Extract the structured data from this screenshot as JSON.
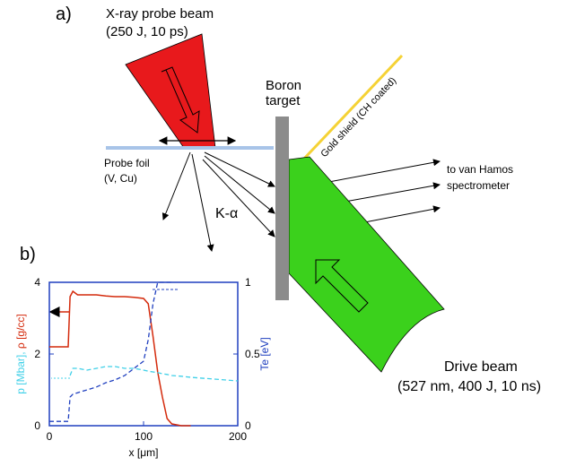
{
  "figure": {
    "panel_a": {
      "label": "a)",
      "probe_beam": [
        "X-ray probe beam",
        "(250 J, 10 ps)"
      ],
      "target": [
        "Boron",
        "target"
      ],
      "shield": "Gold shield (CH coated)",
      "foil": [
        "Probe foil",
        "(V, Cu)"
      ],
      "spectrometer": [
        "to van Hamos",
        "spectrometer"
      ],
      "k_alpha": "K-α",
      "drive_beam": [
        "Drive beam",
        "(527 nm, 400 J, 10 ns)"
      ]
    },
    "panel_b": {
      "label": "b)"
    }
  },
  "chart_data": {
    "type": "line",
    "xlabel": "x [μm]",
    "ylabel": [
      "p [Mbar],",
      "ρ [g/cc]"
    ],
    "y2label": "Te [eV]",
    "x": [
      0,
      15,
      20,
      22,
      25,
      30,
      40,
      50,
      60,
      70,
      80,
      90,
      100,
      105,
      110,
      115,
      120,
      125,
      130,
      140,
      150,
      200
    ],
    "xlim": [
      0,
      200
    ],
    "xticks": [
      0,
      100,
      200
    ],
    "ylim": [
      0,
      4
    ],
    "yticks": [
      0,
      2,
      4
    ],
    "y2lim": [
      0,
      1
    ],
    "y2ticks": [
      0,
      0.5,
      1
    ],
    "series": [
      {
        "color": "#d42a0c",
        "dash": false,
        "values": [
          2.2,
          2.2,
          2.2,
          3.6,
          3.75,
          3.65,
          3.65,
          3.65,
          3.62,
          3.6,
          3.6,
          3.58,
          3.55,
          3.4,
          2.5,
          1.5,
          0.8,
          0.2,
          0.05,
          0,
          0,
          null
        ]
      },
      {
        "color": "#1f3fbf",
        "dash": true,
        "axis": "y2",
        "values": [
          0.03,
          0.03,
          0.03,
          0.2,
          0.22,
          0.23,
          0.25,
          0.27,
          0.3,
          0.32,
          0.35,
          0.4,
          0.45,
          0.6,
          0.85,
          1,
          1,
          1,
          1,
          null,
          null,
          null
        ]
      },
      {
        "color": "#3fd0e8",
        "dash": true,
        "values": [
          null,
          null,
          null,
          1.4,
          1.6,
          1.6,
          1.55,
          1.6,
          1.65,
          1.65,
          1.6,
          1.6,
          1.55,
          1.52,
          1.5,
          1.48,
          1.45,
          1.43,
          1.4,
          1.38,
          1.35,
          1.25
        ]
      }
    ]
  }
}
